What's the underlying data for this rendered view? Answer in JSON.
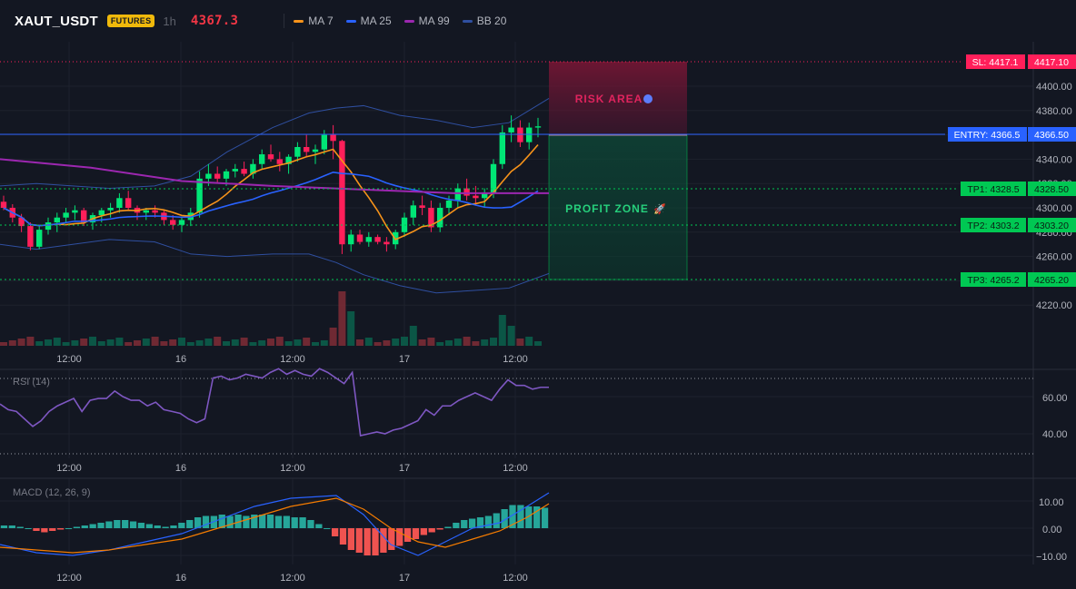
{
  "header": {
    "symbol": "XAUT_USDT",
    "badge": "FUTURES",
    "timeframe": "1h",
    "last_price": "4367.3",
    "indicators": [
      {
        "label": "MA 7",
        "color": "#f7931a"
      },
      {
        "label": "MA 25",
        "color": "#2962ff"
      },
      {
        "label": "MA 99",
        "color": "#9c27b0"
      },
      {
        "label": "BB 20",
        "color": "#2f4fa0"
      }
    ]
  },
  "colors": {
    "up": "#089981",
    "down": "#f23645",
    "up_bright": "#00e676",
    "down_bright": "#ff1f5a",
    "entry": "#2962ff",
    "sl": "#ff1f5a",
    "tp": "#00c853",
    "rsi": "#7e57c2",
    "macd": "#2962ff",
    "signal": "#f57c00"
  },
  "price_axis": {
    "ticks": [
      "4400.00",
      "4380.00",
      "4360.00",
      "4340.00",
      "4320.00",
      "4300.00",
      "4280.00",
      "4260.00",
      "4240.00",
      "4220.00"
    ]
  },
  "time_axis": {
    "labels": [
      "12:00",
      "16",
      "12:00",
      "17",
      "12:00"
    ]
  },
  "trade": {
    "sl_label": "SL: 4417.1",
    "sl_price": "4417.10",
    "entry_label": "ENTRY: 4366.5",
    "entry_price": "4366.50",
    "tp1_label": "TP1: 4328.5",
    "tp1_price": "4328.50",
    "tp2_label": "TP2: 4303.2",
    "tp2_price": "4303.20",
    "tp3_label": "TP3: 4265.2",
    "tp3_price": "4265.20",
    "risk_text": "RISK AREA",
    "profit_text": "PROFIT ZONE"
  },
  "rsi": {
    "label": "RSI (14)",
    "ticks": [
      "60.00",
      "40.00"
    ],
    "values": [
      56,
      53,
      52,
      48,
      44,
      47,
      52,
      55,
      57,
      59,
      52,
      58,
      59,
      59,
      63,
      60,
      58,
      58,
      55,
      57,
      53,
      52,
      51,
      48,
      46,
      48,
      70,
      71,
      69,
      70,
      72,
      71,
      70,
      73,
      75,
      72,
      74,
      72,
      71,
      75,
      73,
      70,
      67,
      73,
      39,
      40,
      41,
      40,
      42,
      43,
      45,
      47,
      53,
      50,
      55,
      55,
      58,
      60,
      62,
      60,
      58,
      64,
      69,
      66,
      66,
      64,
      65,
      65
    ]
  },
  "macd": {
    "label": "MACD (12, 26, 9)",
    "ticks": [
      "10.00",
      "0.00",
      "−10.00"
    ],
    "hist": [
      1,
      1,
      0.5,
      0,
      -1,
      -1.5,
      -1,
      -0.5,
      0,
      0.5,
      1,
      1.5,
      2,
      2.5,
      3,
      3,
      2.5,
      2,
      1.5,
      1,
      0.5,
      1,
      2,
      3,
      4,
      4.5,
      4.5,
      5,
      4.5,
      5,
      4.5,
      5,
      5,
      5,
      4.5,
      4.5,
      4,
      4,
      3,
      1.5,
      0,
      -3,
      -6,
      -8,
      -9,
      -10,
      -10,
      -9,
      -8,
      -6.5,
      -5,
      -4,
      -2.5,
      -1.5,
      -0.5,
      0.5,
      2,
      3,
      3.5,
      4,
      4.5,
      5.5,
      7,
      8.5,
      8.5,
      8,
      8,
      7.5
    ]
  }
}
